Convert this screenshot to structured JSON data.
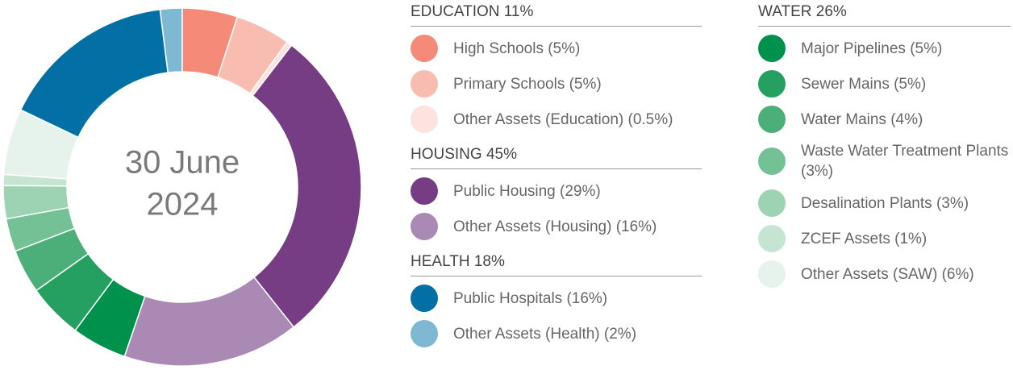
{
  "chart_data": {
    "type": "donut",
    "center_label": [
      "30 June",
      "2024"
    ],
    "groups": [
      {
        "title": "EDUCATION 11%",
        "items": [
          {
            "name": "High Schools",
            "value": 5,
            "value_label": "(5%)",
            "color": "#f58a78"
          },
          {
            "name": "Primary Schools",
            "value": 5,
            "value_label": "(5%)",
            "color": "#f9bcb0"
          },
          {
            "name": "Other Assets (Education)",
            "value": 0.5,
            "value_label": "(0.5%)",
            "color": "#fde3df"
          }
        ]
      },
      {
        "title": "HOUSING 45%",
        "items": [
          {
            "name": "Public Housing",
            "value": 29,
            "value_label": "(29%)",
            "color": "#763d85"
          },
          {
            "name": "Other Assets (Housing)",
            "value": 16,
            "value_label": "(16%)",
            "color": "#ab89b5"
          }
        ]
      },
      {
        "title": "WATER 26%",
        "items": [
          {
            "name": "Major Pipelines",
            "value": 5,
            "value_label": "(5%)",
            "color": "#00914d"
          },
          {
            "name": "Sewer Mains",
            "value": 5,
            "value_label": "(5%)",
            "color": "#26a060"
          },
          {
            "name": "Water Mains",
            "value": 4,
            "value_label": "(4%)",
            "color": "#4caf7a"
          },
          {
            "name": "Waste Water Treatment Plants",
            "value": 3,
            "value_label": "(3%)",
            "color": "#74c196"
          },
          {
            "name": "Desalination Plants",
            "value": 3,
            "value_label": "(3%)",
            "color": "#9dd3b3"
          },
          {
            "name": "ZCEF Assets",
            "value": 1,
            "value_label": "(1%)",
            "color": "#c5e5d2"
          },
          {
            "name": "Other Assets (SAW)",
            "value": 6,
            "value_label": "(6%)",
            "color": "#e6f3ec"
          }
        ]
      },
      {
        "title": "HEALTH 18%",
        "items": [
          {
            "name": "Public Hospitals",
            "value": 16,
            "value_label": "(16%)",
            "color": "#0270a5"
          },
          {
            "name": "Other Assets (Health)",
            "value": 2,
            "value_label": "(2%)",
            "color": "#7fb8d3"
          }
        ]
      }
    ]
  }
}
